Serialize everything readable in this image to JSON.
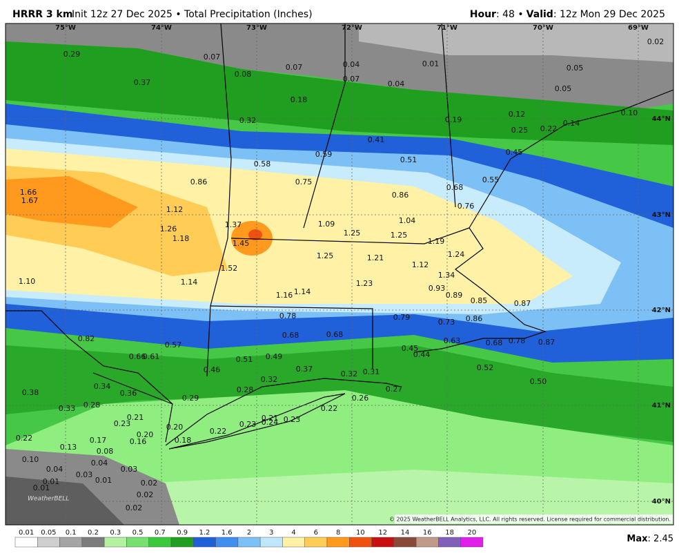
{
  "header": {
    "model": "HRRR 3 km",
    "init": "Init 12z 27 Dec 2025 • Total Precipitation (Inches)",
    "hour_label": "Hour",
    "hour_value": ": 48 •",
    "valid_label": "Valid",
    "valid_value": ": 12z Mon 29 Dec 2025"
  },
  "map": {
    "lon_labels": [
      "75°W",
      "74°W",
      "73°W",
      "72°W",
      "71°W",
      "70°W",
      "69°W"
    ],
    "lat_labels": [
      "44°N",
      "43°N",
      "42°N",
      "41°N",
      "40°N"
    ],
    "credit": "© 2025 WeatherBELL Analytics, LLC. All rights reserved. License required for commercial distribution.",
    "logo": "WeatherBELL",
    "value_labels": [
      "0.29",
      "0.07",
      "0.08",
      "0.07",
      "0.04",
      "0.07",
      "0.01",
      "0.04",
      "0.05",
      "0.05",
      "0.02",
      "0.37",
      "0.18",
      "0.32",
      "0.19",
      "0.12",
      "0.10",
      "0.25",
      "0.22",
      "0.14",
      "0.41",
      "0.59",
      "0.51",
      "0.45",
      "0.58",
      "0.86",
      "0.75",
      "0.68",
      "0.55",
      "0.86",
      "0.76",
      "1.66",
      "1.67",
      "1.12",
      "1.04",
      "1.09",
      "1.37",
      "1.26",
      "1.25",
      "1.25",
      "1.18",
      "1.45",
      "1.19",
      "1.24",
      "1.25",
      "1.21",
      "1.12",
      "1.52",
      "1.34",
      "1.10",
      "1.14",
      "1.23",
      "0.93",
      "0.89",
      "1.16",
      "1.14",
      "0.85",
      "0.87",
      "0.78",
      "0.79",
      "0.73",
      "0.86",
      "0.82",
      "0.68",
      "0.68",
      "0.63",
      "0.68",
      "0.78",
      "0.87",
      "0.57",
      "0.45",
      "0.44",
      "0.66",
      "0.61",
      "0.51",
      "0.49",
      "0.52",
      "0.46",
      "0.37",
      "0.32",
      "0.31",
      "0.32",
      "0.50",
      "0.34",
      "0.36",
      "0.28",
      "0.27",
      "0.38",
      "0.26",
      "0.28",
      "0.29",
      "0.33",
      "0.22",
      "0.21",
      "0.23",
      "0.21",
      "0.24",
      "0.23",
      "0.23",
      "0.20",
      "0.22",
      "0.20",
      "0.16",
      "0.18",
      "0.17",
      "0.22",
      "0.13",
      "0.08",
      "0.10",
      "0.04",
      "0.04",
      "0.03",
      "0.03",
      "0.01",
      "0.01",
      "0.02",
      "0.01",
      "0.02",
      "0.02"
    ]
  },
  "legend": {
    "labels": [
      "0.01",
      "0.05",
      "0.1",
      "0.2",
      "0.3",
      "0.5",
      "0.7",
      "0.9",
      "1.2",
      "1.6",
      "2",
      "3",
      "4",
      "6",
      "8",
      "10",
      "12",
      "14",
      "16",
      "18",
      "20"
    ],
    "colors": [
      "#ffffff",
      "#cfcfcf",
      "#a5a5a5",
      "#7c7c7c",
      "#b5f2a0",
      "#78e070",
      "#3cc83c",
      "#1f9e1f",
      "#1f5fd8",
      "#3f8ef0",
      "#7cc0f6",
      "#bfe6fa",
      "#fff2a6",
      "#ffcc55",
      "#ff9a1e",
      "#f05010",
      "#c81010",
      "#8a4a3a",
      "#c09a88",
      "#8060b8",
      "#e020e8"
    ],
    "max_label": "Max",
    "max_value": ": 2.45"
  }
}
